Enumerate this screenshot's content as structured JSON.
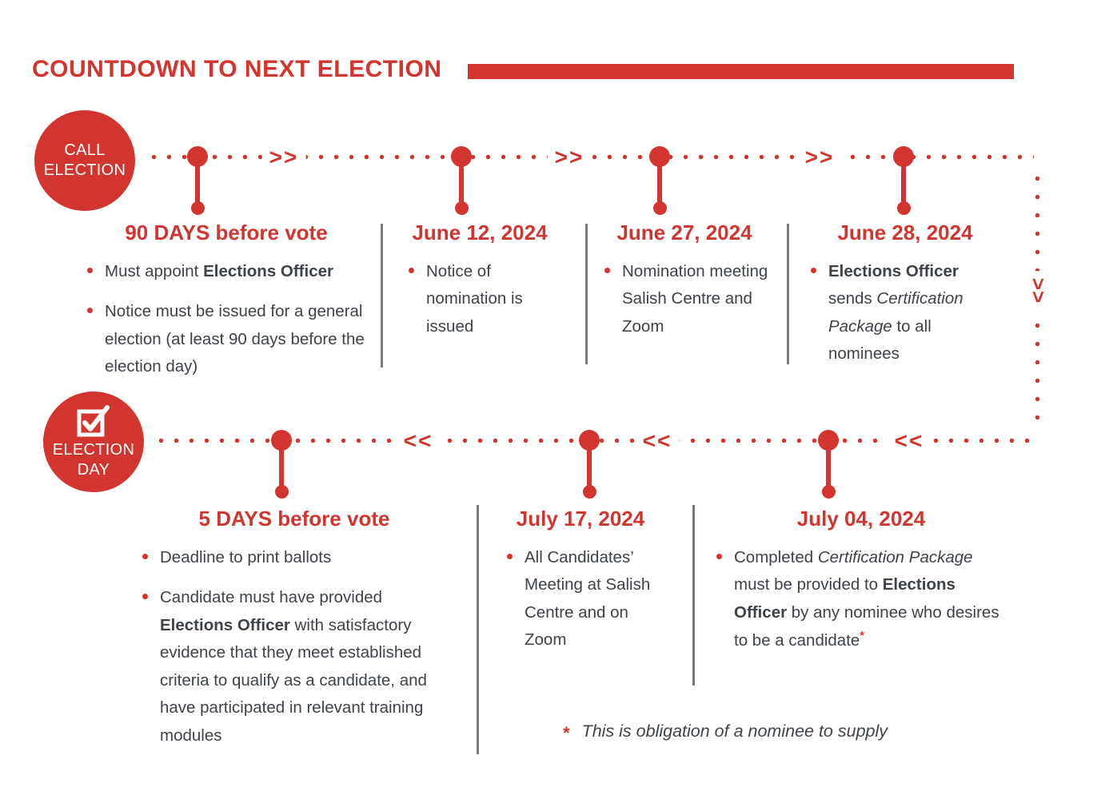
{
  "title": {
    "text": "COUNTDOWN TO NEXT ELECTION"
  },
  "colors": {
    "red": "#d23530",
    "text": "#3d4348",
    "divider": "#7b7b7b"
  },
  "icons": {
    "call_election_badge": "red-circle",
    "election_day_badge": "red-circle-with-checked-ballot-checkbox",
    "forward_arrow": ">>",
    "back_arrow": "<<",
    "down_arrow": "<<"
  },
  "row1": {
    "badge": {
      "line1": "CALL",
      "line2": "ELECTION"
    },
    "arrow": ">>",
    "cols": [
      {
        "heading": "90 DAYS before vote",
        "bullets": [
          {
            "seg": [
              {
                "t": "Must appoint ",
                "s": "n"
              },
              {
                "t": "Elections Officer",
                "s": "b"
              }
            ]
          },
          {
            "seg": [
              {
                "t": "Notice must be issued for a general election (at least 90 days before the election day)",
                "s": "n"
              }
            ]
          }
        ]
      },
      {
        "heading": "June 12, 2024",
        "bullets": [
          {
            "seg": [
              {
                "t": "Notice of nomination is issued",
                "s": "n"
              }
            ]
          }
        ]
      },
      {
        "heading": "June 27, 2024",
        "bullets": [
          {
            "seg": [
              {
                "t": "Nomination meeting Salish Centre and Zoom",
                "s": "n"
              }
            ]
          }
        ]
      },
      {
        "heading": "June 28, 2024",
        "bullets": [
          {
            "seg": [
              {
                "t": "Elections Officer",
                "s": "b"
              },
              {
                "t": " sends ",
                "s": "n"
              },
              {
                "t": "Certification Package",
                "s": "i"
              },
              {
                "t": " to all nominees",
                "s": "n"
              }
            ]
          }
        ]
      }
    ]
  },
  "connector": {
    "arrow": "<<"
  },
  "row2": {
    "badge": {
      "line1": "ELECTION",
      "line2": "DAY"
    },
    "arrow": "<<",
    "cols": [
      {
        "heading": "5 DAYS before vote",
        "bullets": [
          {
            "seg": [
              {
                "t": "Deadline to print ballots",
                "s": "n"
              }
            ]
          },
          {
            "seg": [
              {
                "t": "Candidate must have provided ",
                "s": "n"
              },
              {
                "t": "Elections Officer",
                "s": "b"
              },
              {
                "t": " with satisfactory evidence that they meet established criteria to qualify as a candidate, and  have participated in relevant training modules",
                "s": "n"
              }
            ]
          }
        ]
      },
      {
        "heading": "July 17, 2024",
        "bullets": [
          {
            "seg": [
              {
                "t": "All Candidates’ Meeting at Salish Centre and on Zoom",
                "s": "n"
              }
            ]
          }
        ]
      },
      {
        "heading": "July 04, 2024",
        "bullets": [
          {
            "seg": [
              {
                "t": "Completed ",
                "s": "n"
              },
              {
                "t": "Certification Package",
                "s": "i"
              },
              {
                "t": " must be provided to ",
                "s": "n"
              },
              {
                "t": "Elections Officer",
                "s": "b"
              },
              {
                "t": " by any nominee who desires to be a candidate",
                "s": "n"
              },
              {
                "t": "*",
                "s": "sup"
              }
            ]
          }
        ]
      }
    ]
  },
  "footnote": {
    "marker": "*",
    "text": "This is obligation of a nominee to supply"
  }
}
